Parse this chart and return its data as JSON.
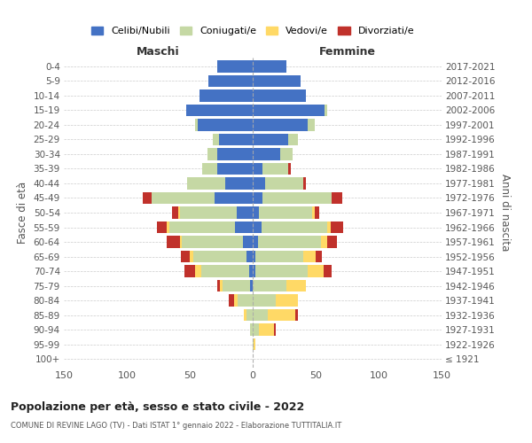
{
  "age_groups": [
    "100+",
    "95-99",
    "90-94",
    "85-89",
    "80-84",
    "75-79",
    "70-74",
    "65-69",
    "60-64",
    "55-59",
    "50-54",
    "45-49",
    "40-44",
    "35-39",
    "30-34",
    "25-29",
    "20-24",
    "15-19",
    "10-14",
    "5-9",
    "0-4"
  ],
  "birth_years": [
    "≤ 1921",
    "1922-1926",
    "1927-1931",
    "1932-1936",
    "1937-1941",
    "1942-1946",
    "1947-1951",
    "1952-1956",
    "1957-1961",
    "1962-1966",
    "1967-1971",
    "1972-1976",
    "1977-1981",
    "1982-1986",
    "1987-1991",
    "1992-1996",
    "1997-2001",
    "2002-2006",
    "2007-2011",
    "2012-2016",
    "2017-2021"
  ],
  "male": {
    "celibi": [
      0,
      0,
      0,
      0,
      0,
      2,
      3,
      5,
      8,
      14,
      13,
      30,
      22,
      28,
      28,
      27,
      44,
      53,
      42,
      35,
      28
    ],
    "coniugati": [
      0,
      0,
      2,
      5,
      12,
      22,
      38,
      42,
      48,
      52,
      45,
      50,
      30,
      12,
      8,
      5,
      2,
      0,
      0,
      0,
      0
    ],
    "vedovi": [
      0,
      0,
      0,
      2,
      3,
      2,
      5,
      3,
      2,
      2,
      1,
      0,
      0,
      0,
      0,
      0,
      0,
      0,
      0,
      0,
      0
    ],
    "divorziati": [
      0,
      0,
      0,
      0,
      4,
      2,
      8,
      7,
      10,
      8,
      5,
      7,
      0,
      0,
      0,
      0,
      0,
      0,
      0,
      0,
      0
    ]
  },
  "female": {
    "nubili": [
      0,
      0,
      0,
      0,
      0,
      0,
      2,
      2,
      4,
      7,
      5,
      8,
      10,
      8,
      22,
      28,
      44,
      57,
      42,
      38,
      27
    ],
    "coniugate": [
      0,
      1,
      5,
      12,
      18,
      27,
      42,
      38,
      50,
      52,
      42,
      55,
      30,
      20,
      10,
      8,
      5,
      2,
      0,
      0,
      0
    ],
    "vedove": [
      0,
      1,
      12,
      22,
      18,
      15,
      12,
      10,
      5,
      3,
      2,
      0,
      0,
      0,
      0,
      0,
      0,
      0,
      0,
      0,
      0
    ],
    "divorziate": [
      0,
      0,
      1,
      2,
      0,
      0,
      7,
      5,
      8,
      10,
      4,
      8,
      2,
      2,
      0,
      0,
      0,
      0,
      0,
      0,
      0
    ]
  },
  "colors": {
    "celibi_nubili": "#4472C4",
    "coniugati": "#C5D8A4",
    "vedovi": "#FFD966",
    "divorziati": "#C0312B"
  },
  "xlim": 150,
  "title": "Popolazione per età, sesso e stato civile - 2022",
  "subtitle": "COMUNE DI REVINE LAGO (TV) - Dati ISTAT 1° gennaio 2022 - Elaborazione TUTTITALIA.IT",
  "ylabel_left": "Fasce di età",
  "ylabel_right": "Anni di nascita",
  "xlabel_male": "Maschi",
  "xlabel_female": "Femmine",
  "legend_labels": [
    "Celibi/Nubili",
    "Coniugati/e",
    "Vedovi/e",
    "Divorziati/e"
  ],
  "bg_color": "#ffffff"
}
